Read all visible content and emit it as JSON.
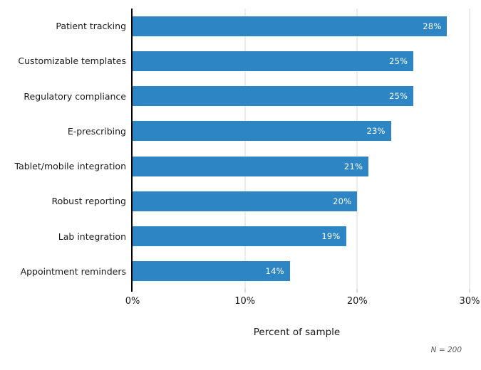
{
  "chart_data": {
    "type": "bar",
    "orientation": "horizontal",
    "title": "",
    "xlabel": "Percent of sample",
    "ylabel": "",
    "categories": [
      "Patient tracking",
      "Customizable templates",
      "Regulatory compliance",
      "E-prescribing",
      "Tablet/mobile integration",
      "Robust reporting",
      "Lab integration",
      "Appointment reminders"
    ],
    "values": [
      28,
      25,
      25,
      23,
      21,
      20,
      19,
      14
    ],
    "bar_labels": [
      "28%",
      "25%",
      "25%",
      "23%",
      "21%",
      "20%",
      "19%",
      "14%"
    ],
    "xlim": [
      0,
      30
    ],
    "xticks": [
      {
        "value": 0,
        "label": "0%"
      },
      {
        "value": 10,
        "label": "10%"
      },
      {
        "value": 20,
        "label": "20%"
      },
      {
        "value": 30,
        "label": "30%"
      }
    ],
    "grid": "vertical-only",
    "legend": "none",
    "note": "N = 200",
    "colors": {
      "bar": "#2d86c3",
      "bar_label_text": "#ffffff",
      "gridline": "#d9d9d9",
      "axis_line": "#000000",
      "tick_mark": "#b5b5b5",
      "text": "#1a1a1a",
      "note_text": "#595959",
      "background": "#ffffff"
    }
  }
}
